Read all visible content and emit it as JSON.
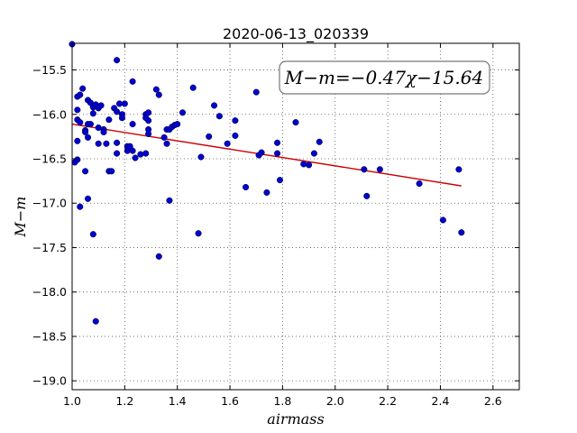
{
  "chart_data": {
    "type": "scatter",
    "title": "2020-06-13_020339",
    "xlabel": "airmass",
    "ylabel": "M−m",
    "xlim": [
      1.0,
      2.7
    ],
    "ylim": [
      -19.1,
      -15.2
    ],
    "y_inverted": true,
    "grid": true,
    "x_ticks": [
      "1.0",
      "1.2",
      "1.4",
      "1.6",
      "1.8",
      "2.0",
      "2.2",
      "2.4",
      "2.6"
    ],
    "x_tick_values": [
      1.0,
      1.2,
      1.4,
      1.6,
      1.8,
      2.0,
      2.2,
      2.4,
      2.6
    ],
    "y_ticks": [
      "−15.5",
      "−16.0",
      "−16.5",
      "−17.0",
      "−17.5",
      "−18.0",
      "−18.5",
      "−19.0"
    ],
    "y_tick_values": [
      -15.5,
      -16.0,
      -16.5,
      -17.0,
      -17.5,
      -18.0,
      -18.5,
      -19.0
    ],
    "annotation": "M−m=−0.47χ−15.64",
    "fit": {
      "slope": -0.47,
      "intercept": -15.64,
      "x_range": [
        1.0,
        2.48
      ],
      "color": "#cc0000"
    },
    "point_color": "#0000cc",
    "points": [
      [
        1.0,
        -15.21
      ],
      [
        1.01,
        -16.54
      ],
      [
        1.02,
        -15.95
      ],
      [
        1.02,
        -15.8
      ],
      [
        1.03,
        -15.78
      ],
      [
        1.02,
        -16.06
      ],
      [
        1.03,
        -16.09
      ],
      [
        1.02,
        -16.3
      ],
      [
        1.02,
        -16.51
      ],
      [
        1.03,
        -17.04
      ],
      [
        1.04,
        -15.71
      ],
      [
        1.05,
        -16.18
      ],
      [
        1.05,
        -16.2
      ],
      [
        1.05,
        -16.64
      ],
      [
        1.06,
        -15.84
      ],
      [
        1.07,
        -15.87
      ],
      [
        1.06,
        -16.11
      ],
      [
        1.07,
        -16.11
      ],
      [
        1.06,
        -16.26
      ],
      [
        1.06,
        -16.95
      ],
      [
        1.08,
        -15.92
      ],
      [
        1.08,
        -15.99
      ],
      [
        1.08,
        -17.35
      ],
      [
        1.09,
        -15.89
      ],
      [
        1.1,
        -15.93
      ],
      [
        1.1,
        -16.15
      ],
      [
        1.1,
        -16.33
      ],
      [
        1.09,
        -18.33
      ],
      [
        1.11,
        -15.9
      ],
      [
        1.12,
        -16.17
      ],
      [
        1.12,
        -16.2
      ],
      [
        1.13,
        -16.33
      ],
      [
        1.14,
        -16.06
      ],
      [
        1.14,
        -16.64
      ],
      [
        1.15,
        -16.64
      ],
      [
        1.16,
        -15.93
      ],
      [
        1.17,
        -15.39
      ],
      [
        1.17,
        -15.97
      ],
      [
        1.17,
        -16.32
      ],
      [
        1.17,
        -16.44
      ],
      [
        1.18,
        -15.88
      ],
      [
        1.19,
        -16.0
      ],
      [
        1.19,
        -16.04
      ],
      [
        1.2,
        -15.88
      ],
      [
        1.21,
        -16.36
      ],
      [
        1.21,
        -16.41
      ],
      [
        1.22,
        -16.36
      ],
      [
        1.23,
        -15.63
      ],
      [
        1.23,
        -16.11
      ],
      [
        1.23,
        -16.41
      ],
      [
        1.24,
        -16.49
      ],
      [
        1.26,
        -16.45
      ],
      [
        1.28,
        -16.0
      ],
      [
        1.28,
        -16.04
      ],
      [
        1.28,
        -16.44
      ],
      [
        1.29,
        -16.07
      ],
      [
        1.29,
        -15.98
      ],
      [
        1.29,
        -16.17
      ],
      [
        1.29,
        -16.22
      ],
      [
        1.32,
        -15.72
      ],
      [
        1.33,
        -15.78
      ],
      [
        1.33,
        -17.6
      ],
      [
        1.35,
        -16.26
      ],
      [
        1.36,
        -16.33
      ],
      [
        1.36,
        -16.17
      ],
      [
        1.37,
        -16.17
      ],
      [
        1.37,
        -16.97
      ],
      [
        1.38,
        -16.14
      ],
      [
        1.39,
        -16.12
      ],
      [
        1.4,
        -16.11
      ],
      [
        1.42,
        -15.98
      ],
      [
        1.46,
        -15.7
      ],
      [
        1.48,
        -17.34
      ],
      [
        1.49,
        -16.48
      ],
      [
        1.52,
        -16.25
      ],
      [
        1.54,
        -15.9
      ],
      [
        1.56,
        -16.02
      ],
      [
        1.59,
        -16.33
      ],
      [
        1.62,
        -16.07
      ],
      [
        1.62,
        -16.24
      ],
      [
        1.66,
        -16.82
      ],
      [
        1.7,
        -15.75
      ],
      [
        1.71,
        -16.46
      ],
      [
        1.72,
        -16.43
      ],
      [
        1.74,
        -16.88
      ],
      [
        1.78,
        -16.32
      ],
      [
        1.78,
        -16.44
      ],
      [
        1.79,
        -16.74
      ],
      [
        1.85,
        -16.09
      ],
      [
        1.88,
        -16.56
      ],
      [
        1.9,
        -16.57
      ],
      [
        1.92,
        -16.44
      ],
      [
        1.94,
        -16.31
      ],
      [
        2.11,
        -16.62
      ],
      [
        2.12,
        -16.92
      ],
      [
        2.17,
        -16.62
      ],
      [
        2.32,
        -16.78
      ],
      [
        2.41,
        -17.19
      ],
      [
        2.47,
        -16.62
      ],
      [
        2.48,
        -17.33
      ]
    ]
  }
}
